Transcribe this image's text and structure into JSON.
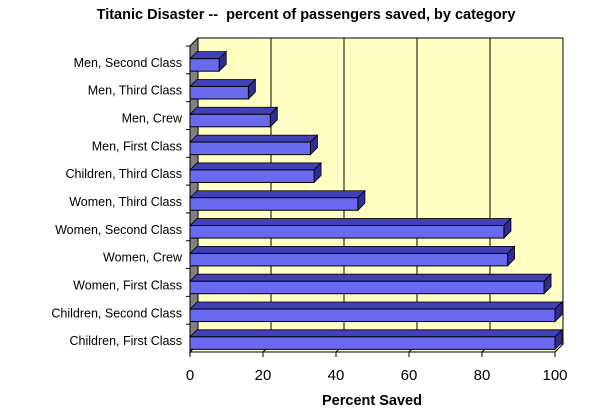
{
  "chart_data": {
    "type": "bar",
    "orientation": "horizontal",
    "style": "3d",
    "title": "Titanic Disaster --  percent of passengers saved, by category",
    "xlabel": "Percent Saved",
    "ylabel": "",
    "xlim": [
      0,
      100
    ],
    "xticks": [
      "0",
      "20",
      "40",
      "60",
      "80",
      "100"
    ],
    "grid": true,
    "legend": "none",
    "categories": [
      "Men, Second Class",
      "Men, Third Class",
      "Men, Crew",
      "Men, First Class",
      "Children, Third Class",
      "Women, Third Class",
      "Women, Second Class",
      "Women, Crew",
      "Women, First Class",
      "Children, Second Class",
      "Children, First Class"
    ],
    "values": [
      8,
      16,
      22,
      33,
      34,
      46,
      86,
      87,
      97,
      100,
      100
    ],
    "colors": {
      "bar_front": "#6a6af0",
      "bar_top": "#4040b8",
      "bar_side": "#2e2e90",
      "wall": "#ffffc4",
      "side_wall": "#808080"
    }
  }
}
